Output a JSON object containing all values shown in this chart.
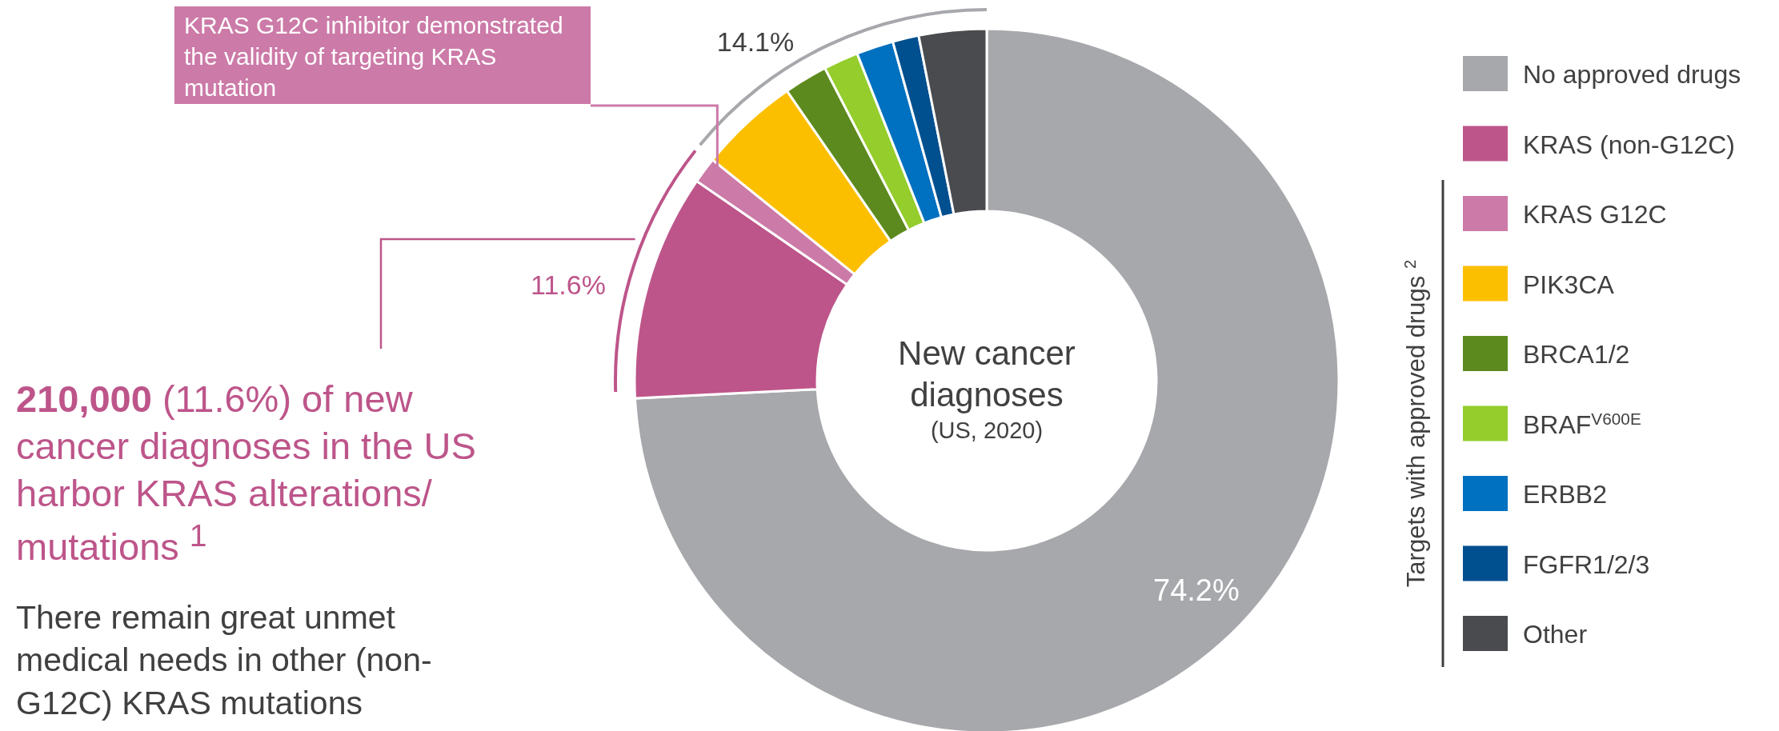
{
  "chart_data": {
    "type": "donut",
    "title": "New cancer diagnoses",
    "subtitle": "(US, 2020)",
    "categories": [
      "No approved drugs",
      "KRAS (non-G12C)",
      "KRAS G12C",
      "PIK3CA",
      "BRCA1/2",
      "BRAF$^{V600E}$",
      "ERBB2",
      "FGFR1/2/3",
      "Other"
    ],
    "values": [
      74.2,
      10.4,
      1.2,
      4.6,
      2.0,
      1.6,
      1.7,
      1.2,
      3.1
    ],
    "colors": [
      "#a7a8ac",
      "#bd558a",
      "#cc7aa8",
      "#fcbf00",
      "#5d8a1e",
      "#94cd2c",
      "#0070c0",
      "#004f8f",
      "#4a4b4e"
    ],
    "value_labels": [
      "74.2%",
      null,
      null,
      null,
      null,
      null,
      null,
      null,
      null
    ],
    "legend": "right",
    "legend_title": "Targets with approved drugs $^{2}$",
    "annotations": [
      "KRAS G12C inhibitor demonstrated the validity of targeting KRAS mutation",
      "11.6%",
      "14.1%",
      "210,000 (11.6%) of new cancer diagnoses in the US harbor KRAS alterations/ mutations $^{1}$",
      "There remain great unmet medical needs in other (non-G12C) KRAS mutations"
    ]
  }
}
